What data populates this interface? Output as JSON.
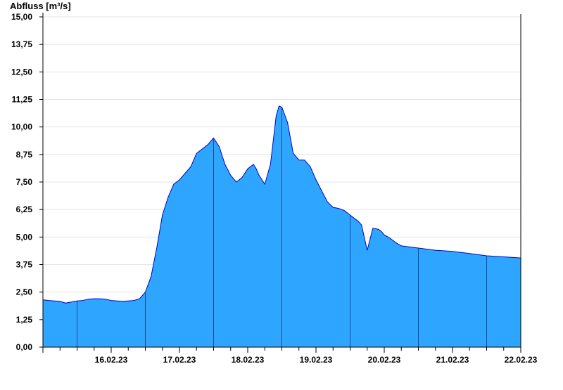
{
  "chart_data": {
    "type": "area",
    "title": "",
    "xlabel": "",
    "ylabel": "Abfluss [m³/s]",
    "ylim": [
      0,
      15
    ],
    "xlim": [
      "2023-02-15T12:00",
      "2023-02-22T12:00"
    ],
    "yticks": [
      "0,00",
      "1,25",
      "2,50",
      "3,75",
      "5,00",
      "6,25",
      "7,50",
      "8,75",
      "10,00",
      "11,25",
      "12,50",
      "13,75",
      "15,00"
    ],
    "xticks": [
      "16.02.23",
      "17.02.23",
      "18.02.23",
      "19.02.23",
      "20.02.23",
      "21.02.23",
      "22.02.23"
    ],
    "grid": true,
    "colors": {
      "fill": "#2ea6ff",
      "line": "#0000cc",
      "grid": "#e4e4e4",
      "axis": "#000000"
    },
    "series": [
      {
        "x": [
          "2023-02-15T12:00",
          "2023-02-15T14:00",
          "2023-02-15T16:00",
          "2023-02-15T18:00",
          "2023-02-15T20:00",
          "2023-02-15T22:00",
          "2023-02-16T00:00",
          "2023-02-16T02:00",
          "2023-02-16T04:00",
          "2023-02-16T06:00",
          "2023-02-16T08:00",
          "2023-02-16T10:00",
          "2023-02-16T12:00",
          "2023-02-16T14:00",
          "2023-02-16T16:00",
          "2023-02-16T18:00",
          "2023-02-16T20:00",
          "2023-02-16T22:00",
          "2023-02-17T00:00",
          "2023-02-17T02:00",
          "2023-02-17T04:00",
          "2023-02-17T06:00",
          "2023-02-17T08:00",
          "2023-02-17T10:00",
          "2023-02-17T12:00",
          "2023-02-17T14:00",
          "2023-02-17T16:00",
          "2023-02-17T18:00",
          "2023-02-17T20:00",
          "2023-02-17T22:00",
          "2023-02-18T00:00",
          "2023-02-18T02:00",
          "2023-02-18T03:00",
          "2023-02-18T04:00",
          "2023-02-18T06:00",
          "2023-02-18T08:00",
          "2023-02-18T10:00",
          "2023-02-18T12:00",
          "2023-02-18T14:00",
          "2023-02-18T15:00",
          "2023-02-18T16:00",
          "2023-02-18T18:00",
          "2023-02-18T20:00",
          "2023-02-18T22:00",
          "2023-02-18T23:00",
          "2023-02-19T00:00",
          "2023-02-19T02:00",
          "2023-02-19T04:00",
          "2023-02-19T06:00",
          "2023-02-19T08:00",
          "2023-02-19T10:00",
          "2023-02-19T12:00",
          "2023-02-19T14:00",
          "2023-02-19T16:00",
          "2023-02-19T18:00",
          "2023-02-19T20:00",
          "2023-02-19T22:00",
          "2023-02-20T00:00",
          "2023-02-20T02:00",
          "2023-02-20T03:00",
          "2023-02-20T04:00",
          "2023-02-20T06:00",
          "2023-02-20T08:00",
          "2023-02-20T10:00",
          "2023-02-20T11:00",
          "2023-02-20T12:00",
          "2023-02-20T14:00",
          "2023-02-20T16:00",
          "2023-02-20T18:00",
          "2023-02-21T00:00",
          "2023-02-21T06:00",
          "2023-02-21T12:00",
          "2023-02-21T18:00",
          "2023-02-22T00:00",
          "2023-02-22T06:00",
          "2023-02-22T12:00"
        ],
        "values": [
          2.15,
          2.12,
          2.1,
          2.08,
          2.0,
          2.05,
          2.1,
          2.12,
          2.18,
          2.2,
          2.2,
          2.18,
          2.12,
          2.1,
          2.08,
          2.1,
          2.12,
          2.2,
          2.5,
          3.2,
          4.5,
          6.0,
          6.8,
          7.4,
          7.6,
          7.9,
          8.2,
          8.8,
          9.0,
          9.2,
          9.5,
          9.1,
          8.7,
          8.3,
          7.8,
          7.5,
          7.7,
          8.1,
          8.3,
          8.1,
          7.8,
          7.4,
          8.3,
          10.5,
          10.95,
          10.9,
          10.2,
          8.8,
          8.5,
          8.5,
          8.2,
          7.6,
          7.1,
          6.6,
          6.35,
          6.3,
          6.2,
          6.0,
          5.8,
          5.7,
          5.55,
          4.4,
          5.4,
          5.35,
          5.25,
          5.1,
          4.95,
          4.75,
          4.6,
          4.5,
          4.4,
          4.35,
          4.25,
          4.15,
          4.1,
          4.05
        ]
      }
    ]
  }
}
